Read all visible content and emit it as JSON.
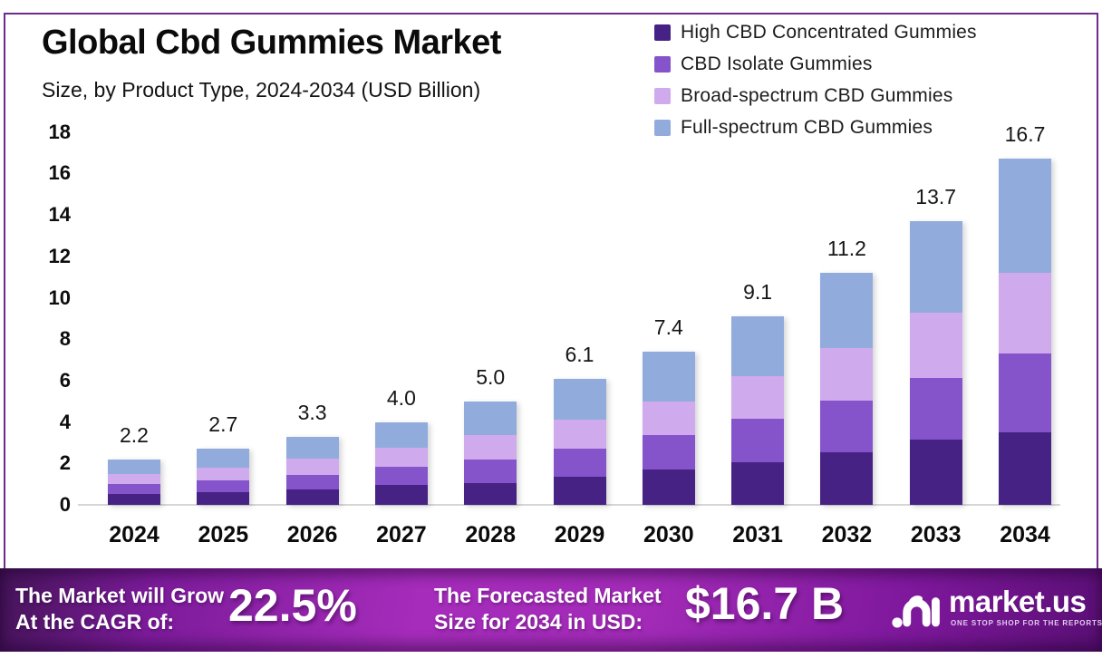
{
  "header": {
    "title": "Global Cbd Gummies Market",
    "subtitle": "Size, by Product Type, 2024-2034 (USD Billion)"
  },
  "chart_data": {
    "type": "bar",
    "stacked": true,
    "title": "Global Cbd Gummies Market Size, by Product Type, 2024-2034 (USD Billion)",
    "xlabel": "",
    "ylabel": "USD Billion",
    "ylim": [
      0,
      18
    ],
    "yticks": [
      "0",
      "2",
      "4",
      "6",
      "8",
      "10",
      "12",
      "14",
      "16",
      "18"
    ],
    "grid": false,
    "legend_position": "top-right",
    "categories": [
      "2024",
      "2025",
      "2026",
      "2027",
      "2028",
      "2029",
      "2030",
      "2031",
      "2032",
      "2033",
      "2034"
    ],
    "series": [
      {
        "name": "High CBD Concentrated Gummies",
        "color": "#452284",
        "values": [
          0.5,
          0.6,
          0.75,
          0.95,
          1.05,
          1.35,
          1.7,
          2.05,
          2.55,
          3.15,
          3.5
        ]
      },
      {
        "name": "CBD Isolate Gummies",
        "color": "#8554cb",
        "values": [
          0.5,
          0.6,
          0.7,
          0.9,
          1.15,
          1.35,
          1.65,
          2.1,
          2.5,
          3.0,
          3.8
        ]
      },
      {
        "name": "Broad-spectrum CBD Gummies",
        "color": "#cfaaec",
        "values": [
          0.5,
          0.6,
          0.8,
          0.9,
          1.15,
          1.4,
          1.65,
          2.05,
          2.5,
          3.15,
          3.9
        ]
      },
      {
        "name": "Full-spectrum CBD Gummies",
        "color": "#92abdd",
        "values": [
          0.7,
          0.9,
          1.05,
          1.25,
          1.65,
          2.0,
          2.4,
          2.9,
          3.65,
          4.4,
          5.5
        ]
      }
    ],
    "totals": [
      2.2,
      2.7,
      3.3,
      4.0,
      5.0,
      6.1,
      7.4,
      9.1,
      11.2,
      13.7,
      16.7
    ],
    "total_labels": [
      "2.2",
      "2.7",
      "3.3",
      "4.0",
      "5.0",
      "6.1",
      "7.4",
      "9.1",
      "11.2",
      "13.7",
      "16.7"
    ]
  },
  "footer": {
    "cagr_line1": "The Market will Grow",
    "cagr_line2": "At the CAGR of:",
    "cagr_value": "22.5%",
    "forecast_line1": "The Forecasted Market",
    "forecast_line2": "Size for 2034 in USD:",
    "forecast_value": "$16.7 B",
    "brand_name": "market.us",
    "brand_tagline": "ONE STOP SHOP FOR THE REPORTS"
  },
  "colors": {
    "frame_border": "#702a8c",
    "banner_center": "#a62cbb",
    "banner_edge": "#5a0f75",
    "axis_line": "#d6d6d6",
    "text": "#111111"
  }
}
